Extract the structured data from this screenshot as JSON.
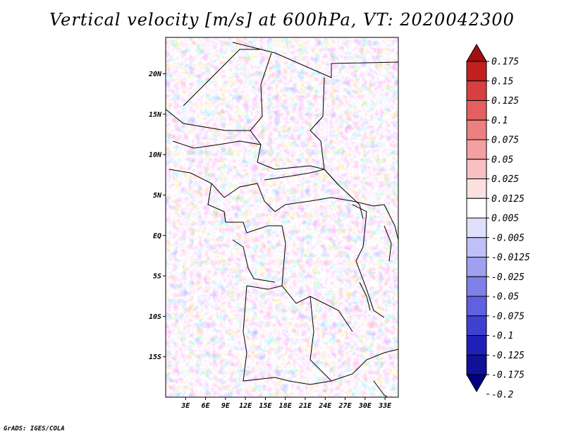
{
  "title": "Vertical velocity [m/s] at 600hPa, VT: 2020042300",
  "credit": "GrADS: IGES/COLA",
  "map": {
    "lon_range": [
      0,
      35
    ],
    "lat_range": [
      -20,
      24.5
    ],
    "lon_ticks": [
      "3E",
      "6E",
      "9E",
      "12E",
      "15E",
      "18E",
      "21E",
      "24E",
      "27E",
      "30E",
      "33E"
    ],
    "lat_ticks": [
      "20N",
      "15N",
      "10N",
      "5N",
      "EQ",
      "5S",
      "10S",
      "15S"
    ]
  },
  "colorbar": {
    "labels": [
      "0.175",
      "0.15",
      "0.125",
      "0.1",
      "0.075",
      "0.05",
      "0.025",
      "0.0125",
      "0.005",
      "-0.005",
      "-0.0125",
      "-0.025",
      "-0.05",
      "-0.075",
      "-0.1",
      "-0.125",
      "-0.175",
      "-0.2"
    ],
    "colors": [
      "#a01010",
      "#c02020",
      "#d84040",
      "#e46060",
      "#ec8080",
      "#f2a0a0",
      "#f8c0c0",
      "#fce0e0",
      "#ffffff",
      "#e0e0fc",
      "#c0c0f8",
      "#a0a0f0",
      "#8080ea",
      "#6060e0",
      "#4040d0",
      "#2020b8",
      "#101098",
      "#000080"
    ]
  }
}
